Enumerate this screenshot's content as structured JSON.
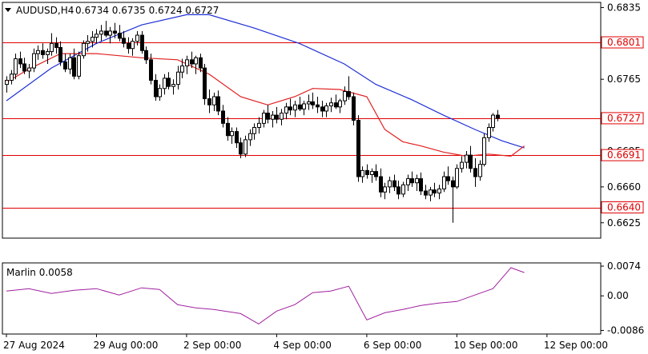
{
  "header": {
    "symbol": "AUDUSD,H4",
    "ohlc": "0.6734 0.6735 0.6724 0.6727"
  },
  "chart_data": [
    {
      "type": "candlestick",
      "symbol": "AUDUSD",
      "timeframe": "H4",
      "ylim": [
        0.661,
        0.684
      ],
      "y_ticks": [
        "0.6835",
        "0.6801",
        "0.6765",
        "0.6727",
        "0.6695",
        "0.6691",
        "0.6660",
        "0.6640",
        "0.6625"
      ],
      "x_ticks": [
        {
          "label": "27 Aug 2024",
          "bar": 0
        },
        {
          "label": "29 Aug 00:00",
          "bar": 20
        },
        {
          "label": "2 Sep 00:00",
          "bar": 40
        },
        {
          "label": "4 Sep 00:00",
          "bar": 60
        },
        {
          "label": "6 Sep 00:00",
          "bar": 80
        },
        {
          "label": "10 Sep 00:00",
          "bar": 100
        },
        {
          "label": "12 Sep 00:00",
          "bar": 120
        }
      ],
      "levels": [
        {
          "value": 0.6801,
          "label": "0.6801",
          "color": "#e00000"
        },
        {
          "value": 0.6727,
          "label": "0.6727",
          "color": "#e00000"
        },
        {
          "value": 0.6691,
          "label": "0.6691",
          "color": "#e00000"
        },
        {
          "value": 0.664,
          "label": "0.6640",
          "color": "#e00000"
        }
      ],
      "candles": [
        [
          0.676,
          0.6768,
          0.6752,
          0.6764
        ],
        [
          0.6764,
          0.6774,
          0.676,
          0.677
        ],
        [
          0.677,
          0.679,
          0.6765,
          0.6785
        ],
        [
          0.6785,
          0.6792,
          0.6776,
          0.678
        ],
        [
          0.678,
          0.6786,
          0.677,
          0.6773
        ],
        [
          0.6773,
          0.678,
          0.6766,
          0.6776
        ],
        [
          0.6776,
          0.6795,
          0.6772,
          0.679
        ],
        [
          0.679,
          0.6798,
          0.6784,
          0.6793
        ],
        [
          0.6793,
          0.68,
          0.6785,
          0.6789
        ],
        [
          0.6789,
          0.6795,
          0.678,
          0.6792
        ],
        [
          0.6792,
          0.681,
          0.6788,
          0.68
        ],
        [
          0.68,
          0.6806,
          0.679,
          0.6796
        ],
        [
          0.6796,
          0.6802,
          0.6778,
          0.6782
        ],
        [
          0.6782,
          0.679,
          0.6772,
          0.6775
        ],
        [
          0.6775,
          0.679,
          0.677,
          0.6786
        ],
        [
          0.6786,
          0.6795,
          0.6765,
          0.6768
        ],
        [
          0.6768,
          0.6792,
          0.6765,
          0.6788
        ],
        [
          0.6788,
          0.6803,
          0.6785,
          0.68
        ],
        [
          0.68,
          0.6808,
          0.6792,
          0.6802
        ],
        [
          0.6802,
          0.6812,
          0.6796,
          0.6806
        ],
        [
          0.6806,
          0.6814,
          0.68,
          0.6809
        ],
        [
          0.6809,
          0.6818,
          0.6802,
          0.6812
        ],
        [
          0.6812,
          0.6822,
          0.6806,
          0.6808
        ],
        [
          0.6808,
          0.6816,
          0.68,
          0.6812
        ],
        [
          0.6812,
          0.682,
          0.6805,
          0.681
        ],
        [
          0.681,
          0.6818,
          0.6802,
          0.6805
        ],
        [
          0.6805,
          0.6812,
          0.6796,
          0.68
        ],
        [
          0.68,
          0.6806,
          0.679,
          0.6795
        ],
        [
          0.6795,
          0.6805,
          0.6788,
          0.6802
        ],
        [
          0.6802,
          0.6812,
          0.6798,
          0.6808
        ],
        [
          0.6808,
          0.6812,
          0.679,
          0.6793
        ],
        [
          0.6793,
          0.6797,
          0.678,
          0.6784
        ],
        [
          0.6784,
          0.679,
          0.676,
          0.6764
        ],
        [
          0.6764,
          0.677,
          0.6744,
          0.6748
        ],
        [
          0.6748,
          0.676,
          0.6744,
          0.6756
        ],
        [
          0.6756,
          0.677,
          0.675,
          0.6766
        ],
        [
          0.6766,
          0.6772,
          0.6755,
          0.6758
        ],
        [
          0.6758,
          0.6765,
          0.675,
          0.676
        ],
        [
          0.676,
          0.6778,
          0.6755,
          0.6772
        ],
        [
          0.6772,
          0.6785,
          0.6766,
          0.6778
        ],
        [
          0.6778,
          0.6788,
          0.677,
          0.6784
        ],
        [
          0.6784,
          0.6792,
          0.6776,
          0.678
        ],
        [
          0.678,
          0.6788,
          0.677,
          0.6786
        ],
        [
          0.6786,
          0.679,
          0.6772,
          0.6776
        ],
        [
          0.6776,
          0.678,
          0.674,
          0.6746
        ],
        [
          0.6746,
          0.6755,
          0.6732,
          0.674
        ],
        [
          0.674,
          0.6752,
          0.6734,
          0.6748
        ],
        [
          0.6748,
          0.6754,
          0.673,
          0.6734
        ],
        [
          0.6734,
          0.674,
          0.6718,
          0.6722
        ],
        [
          0.6722,
          0.6728,
          0.6705,
          0.671
        ],
        [
          0.671,
          0.6718,
          0.6702,
          0.6714
        ],
        [
          0.6714,
          0.6718,
          0.6698,
          0.6703
        ],
        [
          0.6703,
          0.6708,
          0.6688,
          0.6692
        ],
        [
          0.6692,
          0.671,
          0.6689,
          0.6706
        ],
        [
          0.6706,
          0.6716,
          0.67,
          0.6712
        ],
        [
          0.6712,
          0.6722,
          0.6706,
          0.6718
        ],
        [
          0.6718,
          0.6728,
          0.6712,
          0.6722
        ],
        [
          0.6722,
          0.6735,
          0.6718,
          0.6732
        ],
        [
          0.6732,
          0.674,
          0.6722,
          0.6726
        ],
        [
          0.6726,
          0.6734,
          0.6718,
          0.673
        ],
        [
          0.673,
          0.6738,
          0.6722,
          0.6726
        ],
        [
          0.6726,
          0.6736,
          0.672,
          0.6732
        ],
        [
          0.6732,
          0.6742,
          0.6726,
          0.6738
        ],
        [
          0.6738,
          0.6746,
          0.673,
          0.6735
        ],
        [
          0.6735,
          0.6744,
          0.6728,
          0.674
        ],
        [
          0.674,
          0.6748,
          0.6734,
          0.6736
        ],
        [
          0.6736,
          0.6744,
          0.673,
          0.6741
        ],
        [
          0.6741,
          0.675,
          0.6735,
          0.6743
        ],
        [
          0.6743,
          0.6752,
          0.6736,
          0.674
        ],
        [
          0.674,
          0.6748,
          0.6732,
          0.6738
        ],
        [
          0.6738,
          0.6744,
          0.6728,
          0.6734
        ],
        [
          0.6734,
          0.6742,
          0.6728,
          0.6739
        ],
        [
          0.6739,
          0.6747,
          0.6733,
          0.6742
        ],
        [
          0.6742,
          0.675,
          0.6736,
          0.6738
        ],
        [
          0.6738,
          0.6746,
          0.6732,
          0.6744
        ],
        [
          0.6744,
          0.6758,
          0.674,
          0.6753
        ],
        [
          0.6753,
          0.6768,
          0.6745,
          0.6748
        ],
        [
          0.6748,
          0.6752,
          0.672,
          0.6725
        ],
        [
          0.6725,
          0.673,
          0.6665,
          0.667
        ],
        [
          0.667,
          0.668,
          0.6664,
          0.6676
        ],
        [
          0.6676,
          0.6682,
          0.6668,
          0.6672
        ],
        [
          0.6672,
          0.6678,
          0.6664,
          0.6675
        ],
        [
          0.6675,
          0.6682,
          0.6666,
          0.667
        ],
        [
          0.667,
          0.6678,
          0.665,
          0.6655
        ],
        [
          0.6655,
          0.6664,
          0.6648,
          0.666
        ],
        [
          0.666,
          0.667,
          0.6654,
          0.6666
        ],
        [
          0.6666,
          0.6672,
          0.6656,
          0.666
        ],
        [
          0.666,
          0.6666,
          0.6648,
          0.6653
        ],
        [
          0.6653,
          0.6665,
          0.665,
          0.6662
        ],
        [
          0.6662,
          0.6672,
          0.6656,
          0.6668
        ],
        [
          0.6668,
          0.6675,
          0.666,
          0.6664
        ],
        [
          0.6664,
          0.6672,
          0.6656,
          0.6668
        ],
        [
          0.6668,
          0.6674,
          0.6652,
          0.6656
        ],
        [
          0.6656,
          0.6662,
          0.6648,
          0.6652
        ],
        [
          0.6652,
          0.666,
          0.6646,
          0.6657
        ],
        [
          0.6657,
          0.6664,
          0.665,
          0.6654
        ],
        [
          0.6654,
          0.6662,
          0.6648,
          0.6658
        ],
        [
          0.6658,
          0.6675,
          0.6655,
          0.667
        ],
        [
          0.667,
          0.668,
          0.6662,
          0.6666
        ],
        [
          0.6666,
          0.667,
          0.6625,
          0.666
        ],
        [
          0.666,
          0.6682,
          0.6658,
          0.6678
        ],
        [
          0.6678,
          0.669,
          0.6674,
          0.6684
        ],
        [
          0.6684,
          0.6695,
          0.6678,
          0.6691
        ],
        [
          0.6691,
          0.67,
          0.6674,
          0.6678
        ],
        [
          0.6678,
          0.6688,
          0.666,
          0.667
        ],
        [
          0.667,
          0.6686,
          0.6666,
          0.6682
        ],
        [
          0.6682,
          0.6712,
          0.668,
          0.6708
        ],
        [
          0.6708,
          0.6722,
          0.6704,
          0.6718
        ],
        [
          0.6718,
          0.6732,
          0.6714,
          0.673
        ],
        [
          0.673,
          0.6735,
          0.6724,
          0.6727
        ]
      ],
      "ma_blue": {
        "color": "#1f2fd6",
        "points": [
          [
            0,
            0.6744
          ],
          [
            10,
            0.6776
          ],
          [
            20,
            0.68
          ],
          [
            30,
            0.6818
          ],
          [
            40,
            0.6828
          ],
          [
            45,
            0.6828
          ],
          [
            55,
            0.6815
          ],
          [
            65,
            0.68
          ],
          [
            75,
            0.678
          ],
          [
            82,
            0.676
          ],
          [
            90,
            0.6745
          ],
          [
            97,
            0.673
          ],
          [
            104,
            0.6716
          ],
          [
            110,
            0.6705
          ],
          [
            115,
            0.6698
          ]
        ]
      },
      "ma_red": {
        "color": "#e02020",
        "points": [
          [
            0,
            0.6762
          ],
          [
            5,
            0.6775
          ],
          [
            12,
            0.679
          ],
          [
            20,
            0.679
          ],
          [
            30,
            0.6786
          ],
          [
            38,
            0.6784
          ],
          [
            45,
            0.677
          ],
          [
            52,
            0.6748
          ],
          [
            58,
            0.674
          ],
          [
            64,
            0.6748
          ],
          [
            68,
            0.6756
          ],
          [
            74,
            0.6755
          ],
          [
            80,
            0.6748
          ],
          [
            84,
            0.6716
          ],
          [
            88,
            0.6704
          ],
          [
            92,
            0.67
          ],
          [
            97,
            0.6694
          ],
          [
            102,
            0.669
          ],
          [
            107,
            0.6692
          ],
          [
            112,
            0.669
          ],
          [
            115,
            0.67
          ]
        ]
      }
    },
    {
      "type": "line",
      "name": "Marlin 0.0058",
      "color": "#a020a0",
      "ylim": [
        -0.0095,
        0.0082
      ],
      "y_ticks": [
        "0.0074",
        "0.00",
        "-0.0086"
      ],
      "x": [
        0,
        5,
        10,
        15,
        20,
        25,
        30,
        34,
        38,
        42,
        46,
        52,
        56,
        60,
        64,
        68,
        72,
        76,
        80,
        84,
        88,
        92,
        96,
        100,
        104,
        108,
        112,
        115
      ],
      "values": [
        0.0012,
        0.0018,
        0.0006,
        0.0014,
        0.0018,
        0.0002,
        0.002,
        0.0016,
        -0.0022,
        -0.003,
        -0.0034,
        -0.0044,
        -0.007,
        -0.0038,
        -0.0022,
        0.0008,
        0.0012,
        0.0024,
        -0.006,
        -0.0042,
        -0.0034,
        -0.0024,
        -0.0018,
        -0.0014,
        0.0002,
        0.0018,
        0.007,
        0.0058
      ]
    }
  ]
}
